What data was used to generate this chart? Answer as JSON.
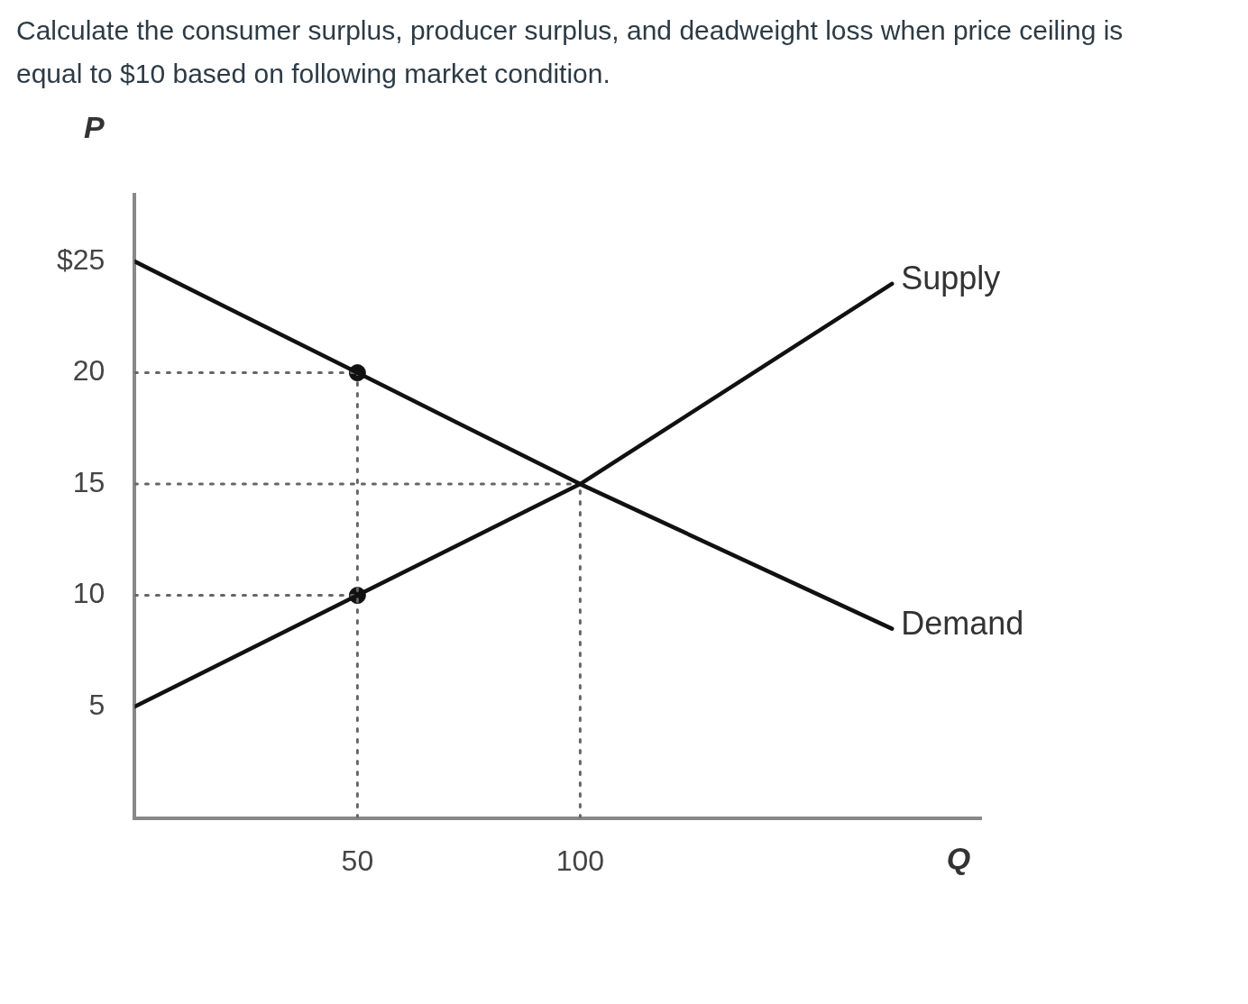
{
  "chart_data": {
    "type": "line",
    "title": "Calculate the consumer surplus, producer surplus, and deadweight loss when price ceiling is equal to $10 based on following market condition.",
    "xlabel": "Q",
    "ylabel": "P",
    "xlim": [
      0,
      190
    ],
    "ylim": [
      0,
      28
    ],
    "xticks": [
      50,
      100
    ],
    "yticks": [
      5,
      10,
      15,
      20,
      {
        "value": 25,
        "label": "$25"
      }
    ],
    "grid": false,
    "legend": false,
    "marker": "none",
    "line_style": "solid",
    "series": [
      {
        "name": "Demand",
        "color": "#111111",
        "x": [
          0,
          50,
          100,
          170
        ],
        "values": [
          25,
          20,
          15,
          8.5
        ]
      },
      {
        "name": "Supply",
        "color": "#111111",
        "x": [
          0,
          50,
          100,
          170
        ],
        "values": [
          5,
          10,
          15,
          24
        ]
      },
      {
        "type": "line",
        "color": "#666666",
        "line_style": "dotted",
        "x": [
          0,
          50
        ],
        "values": [
          20,
          20
        ]
      },
      {
        "type": "line",
        "color": "#666666",
        "line_style": "dotted",
        "x": [
          0,
          100
        ],
        "values": [
          15,
          15
        ]
      },
      {
        "type": "line",
        "color": "#666666",
        "line_style": "dotted",
        "x": [
          0,
          50
        ],
        "values": [
          10,
          10
        ]
      },
      {
        "type": "line",
        "color": "#666666",
        "line_style": "dotted",
        "x": [
          50,
          50
        ],
        "values": [
          0,
          20
        ]
      },
      {
        "type": "line",
        "color": "#666666",
        "line_style": "dotted",
        "x": [
          100,
          100
        ],
        "values": [
          0,
          15
        ]
      },
      {
        "type": "scatter",
        "color": "#111111",
        "marker": "circle",
        "x": [
          50,
          50
        ],
        "values": [
          20,
          10
        ]
      }
    ]
  }
}
